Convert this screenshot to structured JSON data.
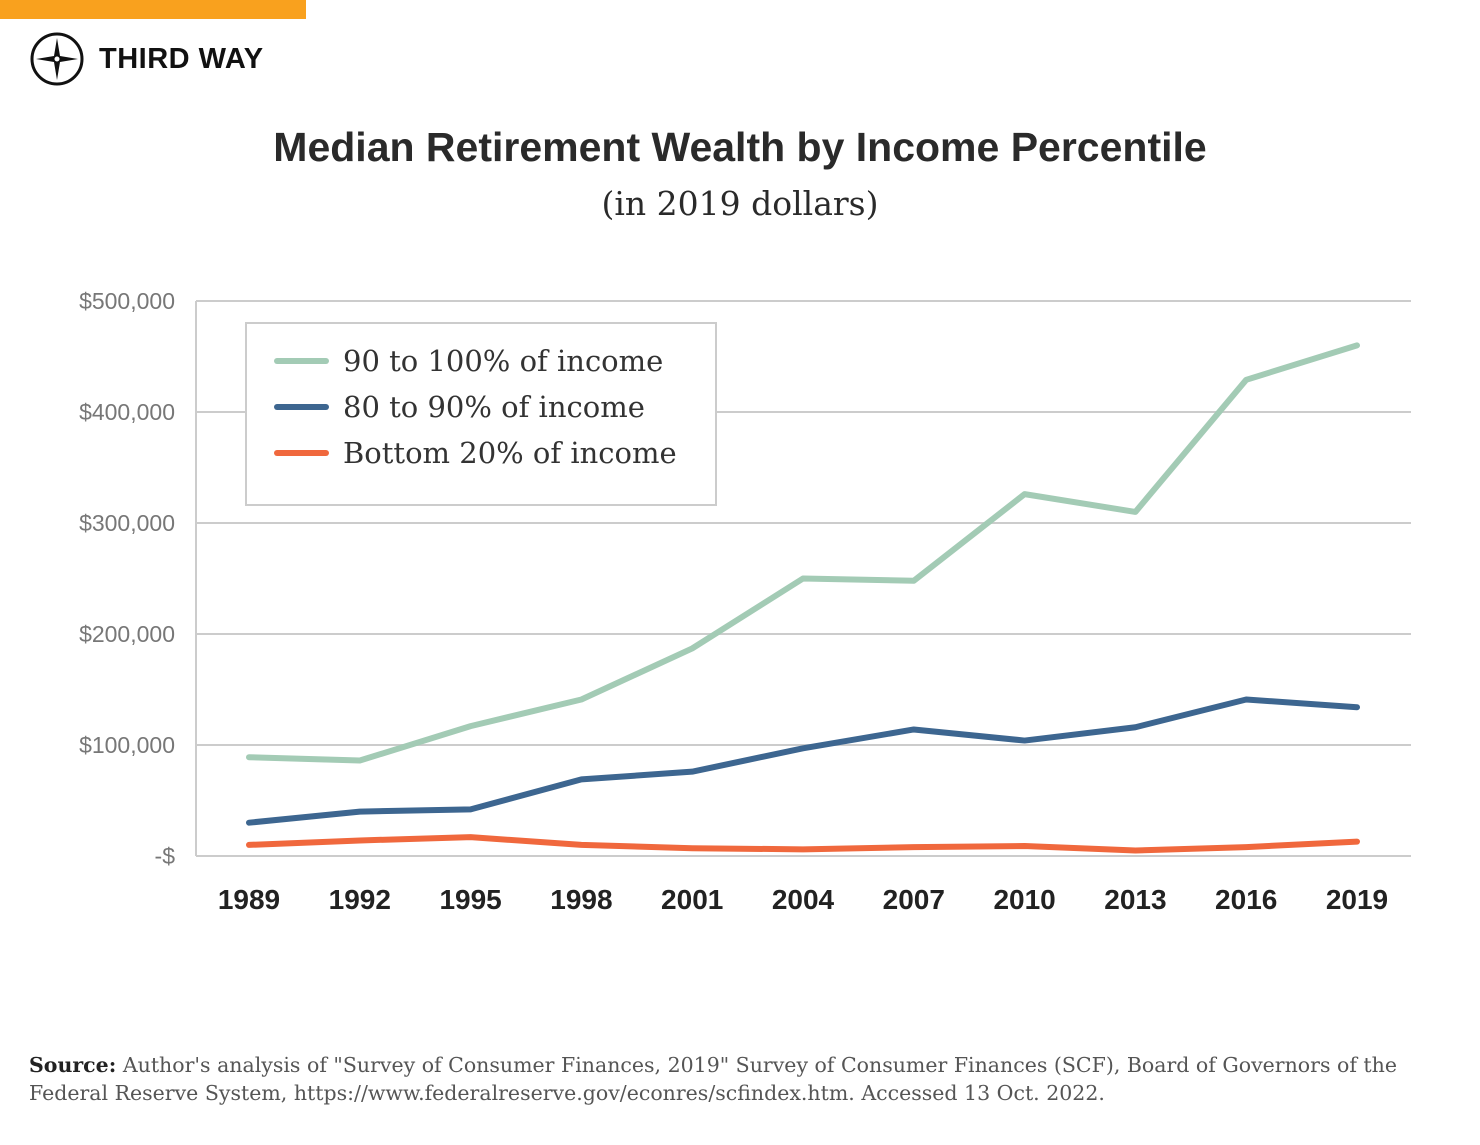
{
  "brand": {
    "name": "THIRD WAY",
    "accent": "#f9a11e"
  },
  "chart_data": {
    "type": "line",
    "title": "Median Retirement Wealth by Income Percentile",
    "subtitle": "(in 2019 dollars)",
    "x": [
      "1989",
      "1992",
      "1995",
      "1998",
      "2001",
      "2004",
      "2007",
      "2010",
      "2013",
      "2016",
      "2019"
    ],
    "ylim": [
      0,
      500000
    ],
    "yticks": [
      0,
      100000,
      200000,
      300000,
      400000,
      500000
    ],
    "ytick_labels": [
      "-$",
      "$100,000",
      "$200,000",
      "$300,000",
      "$400,000",
      "$500,000"
    ],
    "grid": true,
    "legend": "top-left",
    "series": [
      {
        "name": "90 to 100% of income",
        "color": "#a3cbb5",
        "values": [
          89000,
          86000,
          117000,
          141000,
          187000,
          250000,
          248000,
          326000,
          310000,
          429000,
          460000
        ]
      },
      {
        "name": "80 to 90% of income",
        "color": "#3d6690",
        "values": [
          30000,
          40000,
          42000,
          69000,
          76000,
          97000,
          114000,
          104000,
          116000,
          141000,
          134000
        ]
      },
      {
        "name": "Bottom 20% of income",
        "color": "#f0683d",
        "values": [
          10000,
          14000,
          17000,
          10000,
          7000,
          6000,
          8000,
          9000,
          5000,
          8000,
          13000
        ]
      }
    ]
  },
  "source": {
    "label": "Source:",
    "text": "Author's analysis of \"Survey of Consumer Finances, 2019\" Survey of Consumer Finances (SCF),  Board of Governors of the Federal Reserve System, https://www.federalreserve.gov/econres/scfindex.htm. Accessed 13 Oct. 2022."
  }
}
